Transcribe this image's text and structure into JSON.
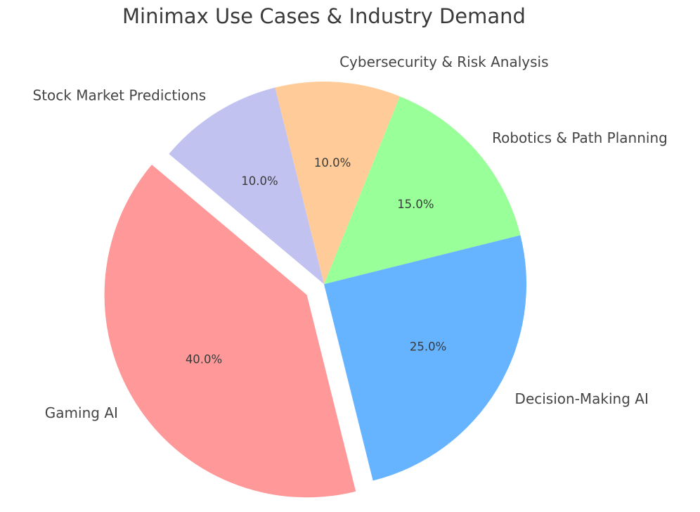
{
  "chart_data": {
    "type": "pie",
    "title": "Minimax Use Cases & Industry Demand",
    "categories": [
      "Gaming AI",
      "Decision-Making AI",
      "Robotics & Path Planning",
      "Cybersecurity & Risk Analysis",
      "Stock Market Predictions"
    ],
    "values": [
      40,
      25,
      15,
      10,
      10
    ],
    "percent_labels": [
      "40.0%",
      "25.0%",
      "15.0%",
      "10.0%",
      "10.0%"
    ],
    "colors": [
      "#ff9999",
      "#66b3ff",
      "#99ff99",
      "#ffcc99",
      "#c2c2f0"
    ],
    "explode": [
      0.1,
      0,
      0,
      0,
      0
    ],
    "startangle": 140,
    "legend": "none",
    "xlabel": "",
    "ylabel": ""
  }
}
